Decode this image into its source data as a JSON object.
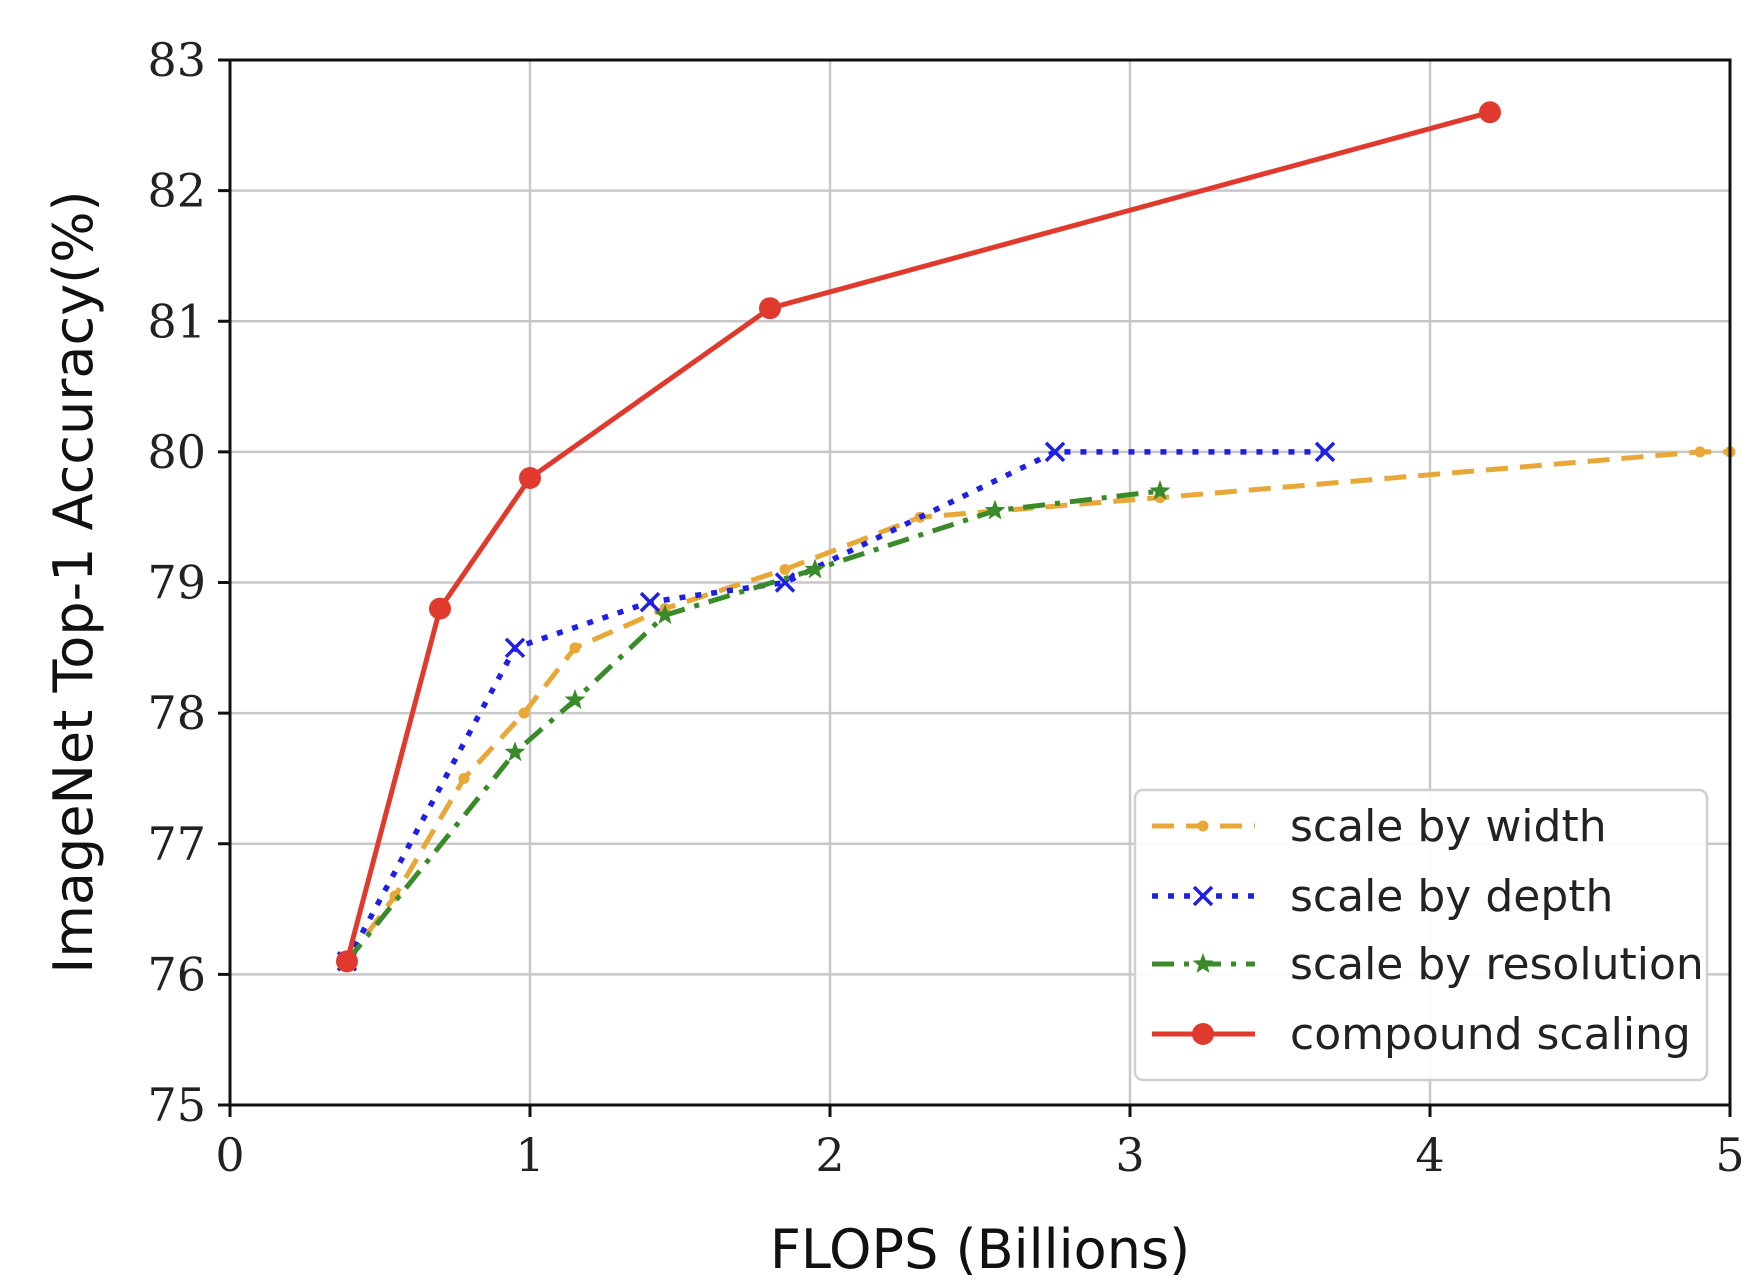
{
  "chart_data": {
    "type": "line",
    "title": "",
    "xlabel": "FLOPS (Billions)",
    "ylabel": "ImageNet Top-1 Accuracy(%)",
    "xlim": [
      0,
      5
    ],
    "ylim": [
      75,
      83
    ],
    "xticks": [
      "0",
      "1",
      "2",
      "3",
      "4",
      "5"
    ],
    "yticks": [
      "75",
      "76",
      "77",
      "78",
      "79",
      "80",
      "81",
      "82",
      "83"
    ],
    "grid": true,
    "legend_position": "bottom-right",
    "series": [
      {
        "name": "scale by width",
        "color": "#E8A838",
        "line_style": "dashed",
        "marker": "dot",
        "points": [
          [
            0.39,
            76.1
          ],
          [
            0.55,
            76.6
          ],
          [
            0.78,
            77.5
          ],
          [
            0.98,
            78.0
          ],
          [
            1.15,
            78.5
          ],
          [
            1.45,
            78.8
          ],
          [
            1.85,
            79.1
          ],
          [
            2.3,
            79.5
          ],
          [
            3.1,
            79.65
          ],
          [
            4.9,
            80.0
          ],
          [
            5.0,
            80.0
          ]
        ]
      },
      {
        "name": "scale by depth",
        "color": "#1F1FE6",
        "line_style": "dotted",
        "marker": "x",
        "points": [
          [
            0.39,
            76.1
          ],
          [
            0.95,
            78.5
          ],
          [
            1.4,
            78.85
          ],
          [
            1.85,
            79.0
          ],
          [
            2.75,
            80.0
          ],
          [
            3.65,
            80.0
          ]
        ]
      },
      {
        "name": "scale by resolution",
        "color": "#3A8A2A",
        "line_style": "dashdot",
        "marker": "star",
        "points": [
          [
            0.39,
            76.1
          ],
          [
            0.95,
            77.7
          ],
          [
            1.15,
            78.1
          ],
          [
            1.45,
            78.75
          ],
          [
            1.95,
            79.1
          ],
          [
            2.55,
            79.55
          ],
          [
            3.1,
            79.7
          ]
        ]
      },
      {
        "name": "compound scaling",
        "color": "#E03A2E",
        "line_style": "solid",
        "marker": "circle",
        "points": [
          [
            0.39,
            76.1
          ],
          [
            0.7,
            78.8
          ],
          [
            1.0,
            79.8
          ],
          [
            1.8,
            81.1
          ],
          [
            4.2,
            82.6
          ]
        ]
      }
    ]
  }
}
